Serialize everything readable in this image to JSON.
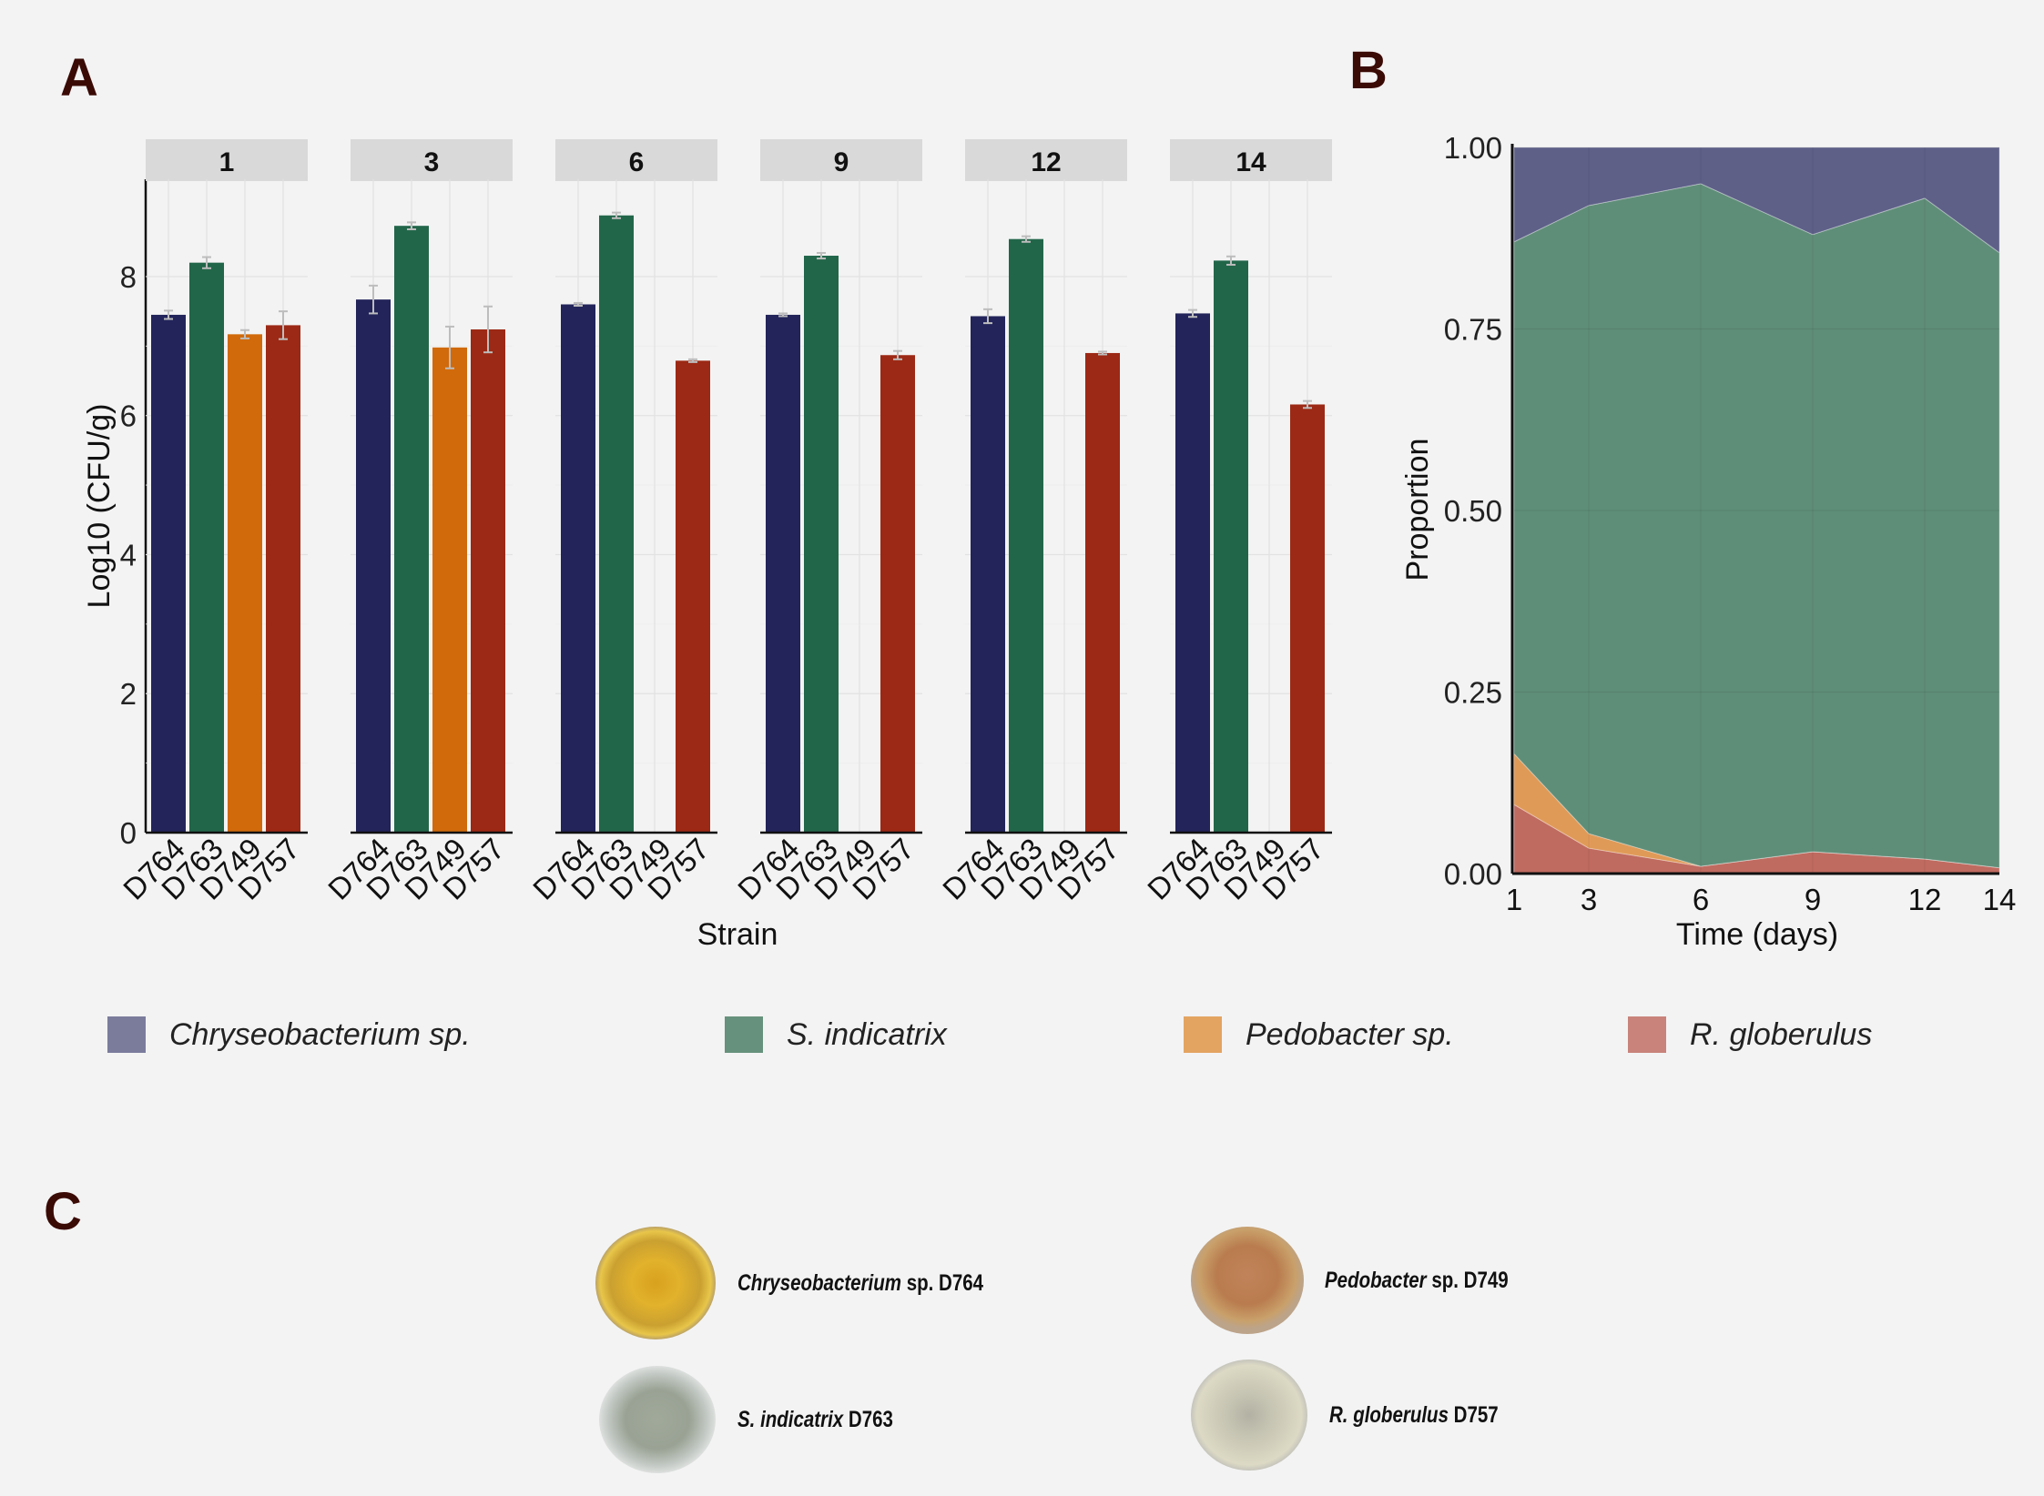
{
  "panels": {
    "a": "A",
    "b": "B",
    "c": "C"
  },
  "colors": {
    "chryseobacterium": "#22245a",
    "indicatrix": "#22664a",
    "pedobacter": "#d16a0b",
    "globerulus": "#9c2915",
    "area_chryseobacterium": "#5e6088",
    "area_indicatrix": "#5f8e78",
    "area_pedobacter": "#e09a58",
    "area_globerulus": "#c06b60"
  },
  "chart_data": [
    {
      "type": "bar",
      "facets": [
        "1",
        "3",
        "6",
        "9",
        "12",
        "14"
      ],
      "categories": [
        "D764",
        "D763",
        "D749",
        "D757"
      ],
      "xlabel": "Strain",
      "ylabel": "Log10 (CFU/g)",
      "yticks": [
        "0",
        "2",
        "4",
        "6",
        "8"
      ],
      "ylim": [
        0,
        9.4
      ],
      "values": [
        [
          7.45,
          8.2,
          7.17,
          7.3
        ],
        [
          7.67,
          8.73,
          6.98,
          7.24
        ],
        [
          7.6,
          8.88,
          0,
          6.79
        ],
        [
          7.45,
          8.3,
          0,
          6.87
        ],
        [
          7.43,
          8.54,
          0,
          6.9
        ],
        [
          7.47,
          8.23,
          0,
          6.16
        ]
      ],
      "errors": [
        [
          0.06,
          0.08,
          0.06,
          0.2
        ],
        [
          0.2,
          0.05,
          0.3,
          0.33
        ],
        [
          0.02,
          0.04,
          0,
          0.02
        ],
        [
          0.02,
          0.04,
          0,
          0.06
        ],
        [
          0.1,
          0.04,
          0,
          0.02
        ],
        [
          0.05,
          0.06,
          0,
          0.05
        ]
      ]
    },
    {
      "type": "area",
      "x": [
        1,
        3,
        6,
        9,
        12,
        14
      ],
      "xlabel": "Time (days)",
      "ylabel": "Proportion",
      "yticks": [
        "0.00",
        "0.25",
        "0.50",
        "0.75",
        "1.00"
      ],
      "xticks": [
        "1",
        "3",
        "6",
        "9",
        "12",
        "14"
      ],
      "ylim": [
        0,
        1
      ],
      "stacked": true,
      "series": [
        {
          "name": "R. globerulus",
          "values": [
            0.095,
            0.035,
            0.01,
            0.03,
            0.02,
            0.008
          ]
        },
        {
          "name": "Pedobacter sp.",
          "values": [
            0.07,
            0.02,
            0.0,
            0.0,
            0.0,
            0.0
          ]
        },
        {
          "name": "S. indicatrix",
          "values": [
            0.705,
            0.865,
            0.94,
            0.85,
            0.91,
            0.847
          ]
        },
        {
          "name": "Chryseobacterium sp.",
          "values": [
            0.13,
            0.08,
            0.05,
            0.12,
            0.07,
            0.145
          ]
        }
      ]
    }
  ],
  "legend": [
    {
      "label": "Chryseobacterium sp.",
      "color": "#7b7c9c"
    },
    {
      "label": "S. indicatrix",
      "color": "#66917c"
    },
    {
      "label": "Pedobacter sp.",
      "color": "#e3a461"
    },
    {
      "label": "R. globerulus",
      "color": "#c9837b"
    }
  ],
  "colonies": [
    {
      "italic": "Chryseobacterium",
      "rest": " sp. D764"
    },
    {
      "italic": "Pedobacter",
      "rest": " sp. D749"
    },
    {
      "italic": "S. indicatrix",
      "rest": " D763"
    },
    {
      "italic": "R. globerulus",
      "rest": " D757"
    }
  ]
}
